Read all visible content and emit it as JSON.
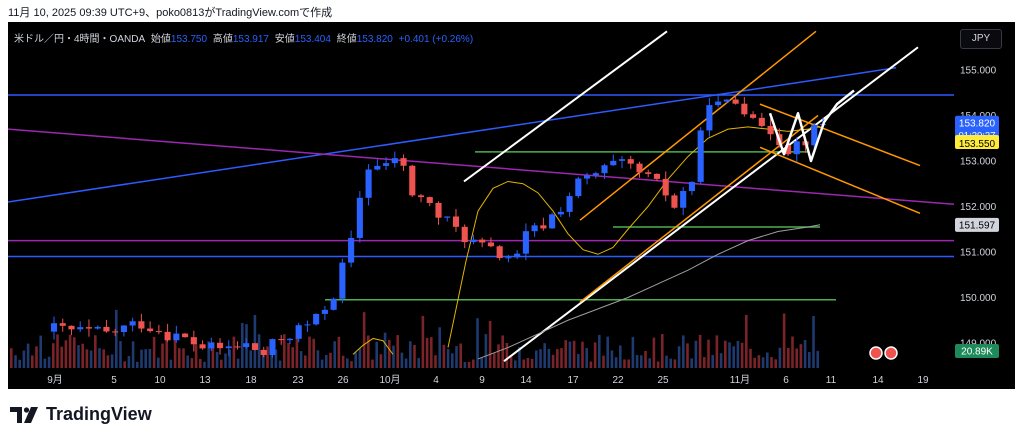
{
  "caption": "11月 10, 2025 09:39 UTC+9、poko0813がTradingView.comで作成",
  "legend": {
    "symbol": "米ドル／円・4時間・OANDA",
    "open_label": "始値",
    "open": "153.750",
    "high_label": "高値",
    "high": "153.917",
    "low_label": "安値",
    "low": "153.404",
    "close_label": "終値",
    "close": "153.820",
    "change": "+0.401 (+0.26%)"
  },
  "currency_button": "JPY",
  "brand": "TradingView",
  "colors": {
    "background": "#000000",
    "up": "#2962ff",
    "down": "#ef5350",
    "blue_line": "#2d5bff",
    "purple_line": "#9c27b0",
    "green_line": "#4caf50",
    "orange_line": "#ff9800",
    "white_line": "#ffffff",
    "yellow_curve": "#e2b400",
    "gray_curve": "#9e9e9e",
    "volume_up": "#1e3a6e",
    "volume_down": "#7a2329"
  },
  "chart_data": {
    "type": "candlestick",
    "symbol": "USD/JPY",
    "interval": "4h",
    "exchange": "OANDA",
    "y_axis": {
      "ticks": [
        "155.000",
        "154.000",
        "153.000",
        "152.000",
        "151.000",
        "150.000",
        "149.000"
      ],
      "range": [
        148.55,
        155.75
      ]
    },
    "x_axis": {
      "ticks": [
        "9月",
        "5",
        "10",
        "13",
        "18",
        "23",
        "26",
        "10月",
        "4",
        "9",
        "14",
        "17",
        "22",
        "25",
        "11月",
        "6",
        "11",
        "14",
        "19"
      ]
    },
    "price_labels": [
      {
        "value": "153.820",
        "timer": "01:20:27",
        "y": 153.82,
        "color": "#2962ff"
      },
      {
        "value": "153.550",
        "y": 153.55,
        "color": "#ffeb3b"
      },
      {
        "value": "151.597",
        "y": 151.597,
        "color": "#d1d4dc"
      }
    ],
    "volume_label": "20.89K",
    "candles_close_path": [
      [
        0,
        149.3
      ],
      [
        6,
        149.2
      ],
      [
        10,
        149.45
      ],
      [
        14,
        149.15
      ],
      [
        18,
        148.85
      ],
      [
        22,
        148.95
      ],
      [
        24,
        148.75
      ],
      [
        26,
        149.1
      ],
      [
        30,
        149.5
      ],
      [
        32,
        150.1
      ],
      [
        34,
        151.2
      ],
      [
        35,
        152.2
      ],
      [
        36,
        152.9
      ],
      [
        38,
        152.85
      ],
      [
        39,
        153.1
      ],
      [
        40,
        152.8
      ],
      [
        41,
        152.3
      ],
      [
        42,
        152.2
      ],
      [
        44,
        151.8
      ],
      [
        46,
        151.5
      ],
      [
        48,
        151.2
      ],
      [
        50,
        151.0
      ],
      [
        52,
        150.9
      ],
      [
        53,
        150.85
      ],
      [
        54,
        151.35
      ],
      [
        56,
        151.6
      ],
      [
        58,
        152.0
      ],
      [
        60,
        152.5
      ],
      [
        62,
        152.7
      ],
      [
        64,
        152.9
      ],
      [
        66,
        152.85
      ],
      [
        68,
        152.6
      ],
      [
        70,
        152.3
      ],
      [
        71,
        152.0
      ],
      [
        72,
        152.3
      ],
      [
        73,
        152.6
      ],
      [
        74,
        153.5
      ],
      [
        75,
        154.4
      ],
      [
        76,
        154.2
      ],
      [
        78,
        154.3
      ],
      [
        80,
        154.1
      ],
      [
        81,
        153.6
      ],
      [
        82,
        153.7
      ],
      [
        84,
        153.3
      ],
      [
        86,
        153.5
      ],
      [
        88,
        153.82
      ]
    ],
    "horizontal_lines": [
      {
        "name": "blue-top",
        "y": 154.45,
        "color": "#2d5bff"
      },
      {
        "name": "purple",
        "y": 151.25,
        "color": "#9c27b0"
      },
      {
        "name": "blue-bottom",
        "y": 150.9,
        "color": "#2d5bff"
      },
      {
        "name": "green-1",
        "y": 153.2,
        "color": "#4caf50"
      },
      {
        "name": "green-2",
        "y": 151.55,
        "color": "#4caf50"
      },
      {
        "name": "green-3",
        "y": 149.95,
        "color": "#4caf50"
      }
    ]
  }
}
